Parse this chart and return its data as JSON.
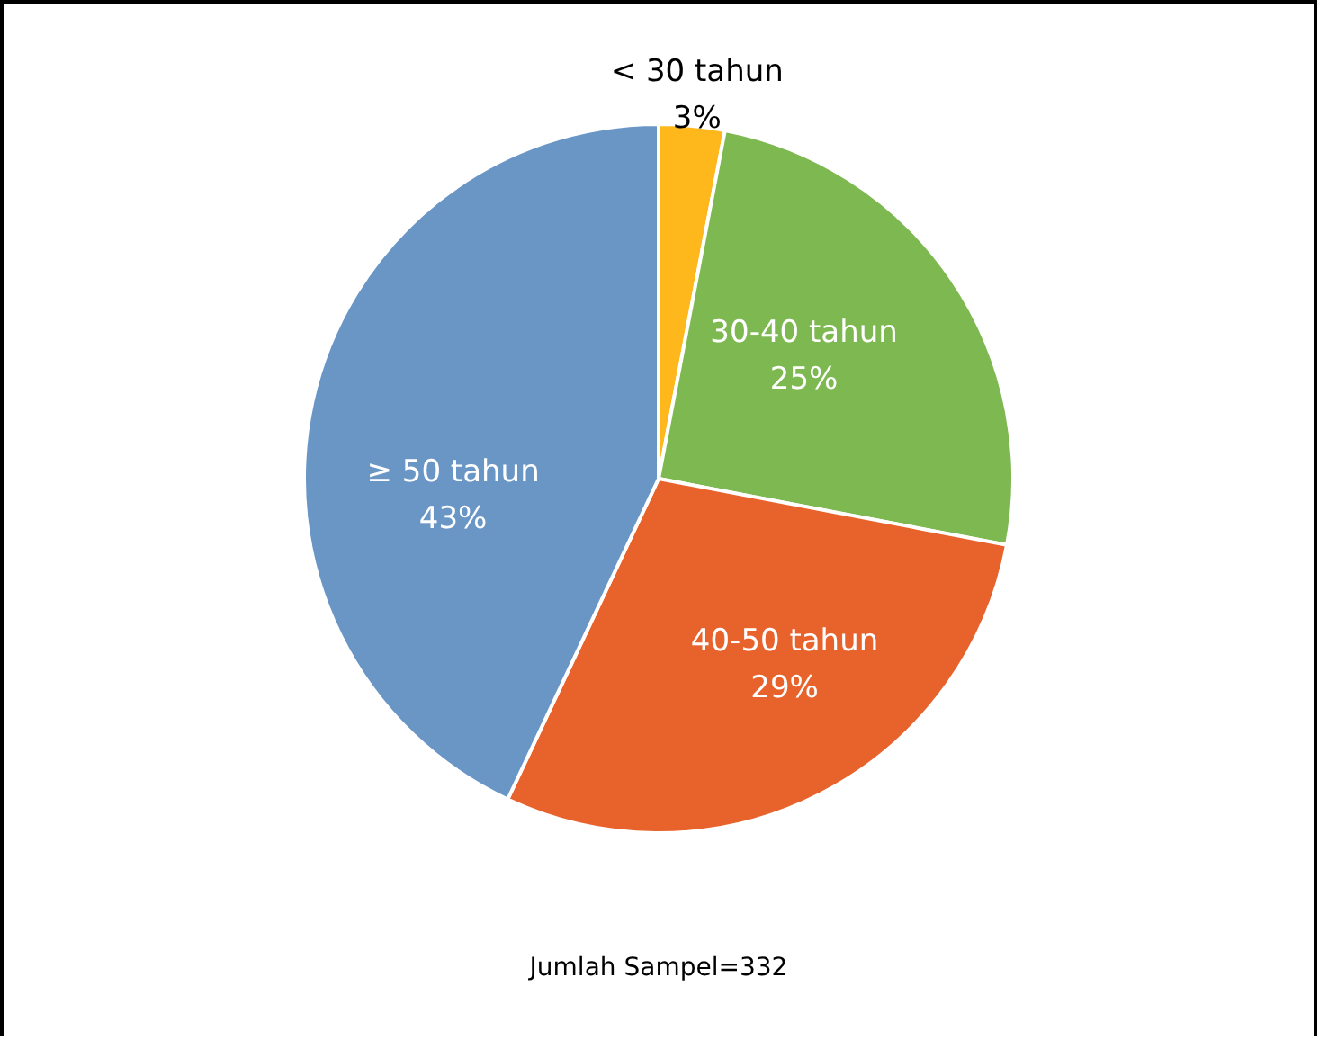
{
  "chart_data": {
    "type": "pie",
    "categories": [
      "< 30 tahun",
      "30-40 tahun",
      "40-50 tahun",
      "≥ 50 tahun"
    ],
    "values": [
      3,
      25,
      29,
      43
    ],
    "value_labels": [
      "3%",
      "25%",
      "29%",
      "43%"
    ],
    "colors": [
      "#ffb81c",
      "#7db850",
      "#e8622c",
      "#6a96c6"
    ],
    "annotations": [
      "Jumlah Sampel=332"
    ]
  }
}
